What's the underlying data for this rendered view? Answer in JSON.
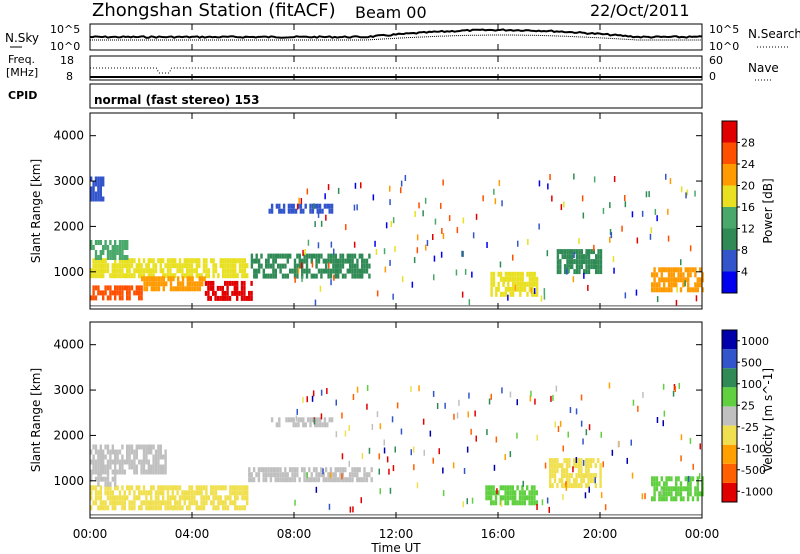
{
  "header": {
    "title": "Zhongshan Station (fitACF)",
    "beam": "Beam 00",
    "date": "22/Oct/2011"
  },
  "noise_panel": {
    "left_label": "N.Sky",
    "left_ticks": [
      "10^5",
      "10^0"
    ],
    "right_ticks": [
      "10^5",
      "10^0"
    ],
    "right_label": "N.Search"
  },
  "freq_panel": {
    "left_label_line1": "Freq.",
    "left_label_line2": "[MHz]",
    "left_ticks": [
      "18",
      "8"
    ],
    "right_ticks": [
      "60",
      "0"
    ],
    "right_label": "Nave"
  },
  "cpid_panel": {
    "label": "CPID",
    "text": "normal (fast stereo) 153"
  },
  "colors": {
    "power_scale": [
      "#0000ee",
      "#3355cc",
      "#2f8a55",
      "#4aa86a",
      "#e8e020",
      "#ff9a00",
      "#ff5000",
      "#e00000"
    ],
    "velocity_scale": [
      "#e00000",
      "#ff6000",
      "#ffa000",
      "#f0e050",
      "#c0c0c0",
      "#60d040",
      "#2f8a55",
      "#3355cc",
      "#0000aa"
    ]
  },
  "chart_data": [
    {
      "type": "heatmap",
      "ylabel": "Slant Range [km]",
      "ylim": [
        180,
        4500
      ],
      "yticks": [
        "1000",
        "2000",
        "3000",
        "4000"
      ],
      "colorbar_label": "Power [dB]",
      "colorbar_ticks": [
        "4",
        "8",
        "12",
        "16",
        "20",
        "24",
        "28"
      ],
      "colorbar_range": [
        0,
        32
      ],
      "regions": [
        {
          "t0": 0.0,
          "t1": 2.0,
          "r0": 400,
          "r1": 700,
          "value": 26
        },
        {
          "t0": 0.0,
          "t1": 6.2,
          "r0": 900,
          "r1": 1300,
          "value": 16
        },
        {
          "t0": 0.0,
          "t1": 1.5,
          "r0": 1300,
          "r1": 1700,
          "value": 12
        },
        {
          "t0": 4.5,
          "t1": 6.3,
          "r0": 400,
          "r1": 800,
          "value": 28
        },
        {
          "t0": 2.0,
          "t1": 4.5,
          "r0": 600,
          "r1": 900,
          "value": 20
        },
        {
          "t0": 6.3,
          "t1": 11.0,
          "r0": 900,
          "r1": 1400,
          "value": 8
        },
        {
          "t0": 7.0,
          "t1": 9.5,
          "r0": 2300,
          "r1": 2500,
          "value": 5
        },
        {
          "t0": 0.0,
          "t1": 0.5,
          "r0": 2600,
          "r1": 3100,
          "value": 7
        },
        {
          "t0": 15.7,
          "t1": 17.5,
          "r0": 500,
          "r1": 1000,
          "value": 16
        },
        {
          "t0": 18.3,
          "t1": 20.0,
          "r0": 1000,
          "r1": 1500,
          "value": 11
        },
        {
          "t0": 22.0,
          "t1": 24.0,
          "r0": 600,
          "r1": 1100,
          "value": 22
        }
      ]
    },
    {
      "type": "heatmap",
      "ylabel": "Slant Range [km]",
      "ylim": [
        180,
        4500
      ],
      "yticks": [
        "1000",
        "2000",
        "3000",
        "4000"
      ],
      "colorbar_label": "Velocity [m s^-1]",
      "colorbar_ticks": [
        "1000",
        "500",
        "100",
        "25",
        "-25",
        "-100",
        "-500",
        "-1000"
      ],
      "colorbar_range": [
        -1000,
        1000
      ],
      "regions": [
        {
          "t0": 0.0,
          "t1": 6.2,
          "r0": 400,
          "r1": 900,
          "value": -300
        },
        {
          "t0": 0.0,
          "t1": 3.0,
          "r0": 1200,
          "r1": 1800,
          "value": 0
        },
        {
          "t0": 0.0,
          "t1": 1.0,
          "r0": 900,
          "r1": 1200,
          "value": 100
        },
        {
          "t0": 6.2,
          "t1": 11.0,
          "r0": 1000,
          "r1": 1300,
          "value": 0
        },
        {
          "t0": 7.0,
          "t1": 9.5,
          "r0": 2200,
          "r1": 2400,
          "value": 0
        },
        {
          "t0": 15.5,
          "t1": 17.5,
          "r0": 500,
          "r1": 900,
          "value": 200
        },
        {
          "t0": 18.0,
          "t1": 20.0,
          "r0": 900,
          "r1": 1500,
          "value": -150
        },
        {
          "t0": 22.0,
          "t1": 24.0,
          "r0": 600,
          "r1": 1100,
          "value": 300
        }
      ]
    }
  ],
  "x_axis": {
    "label": "Time UT",
    "ticks": [
      "00:00",
      "04:00",
      "08:00",
      "12:00",
      "16:00",
      "20:00",
      "00:00"
    ],
    "range_hours": [
      0,
      24
    ]
  }
}
